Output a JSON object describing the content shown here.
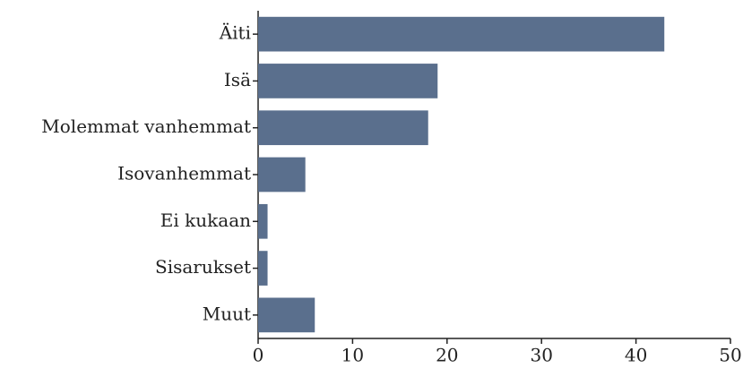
{
  "chart_data": {
    "type": "barh",
    "categories": [
      "Äiti",
      "Isä",
      "Molemmat vanhemmat",
      "Isovanhemmat",
      "Ei kukaan",
      "Sisarukset",
      "Muut"
    ],
    "values": [
      43,
      19,
      18,
      5,
      1,
      1,
      6
    ],
    "color": "#5a6f8d",
    "xlim": [
      0,
      50
    ],
    "xticks": [
      0,
      10,
      20,
      30,
      40,
      50
    ],
    "grid": false
  }
}
